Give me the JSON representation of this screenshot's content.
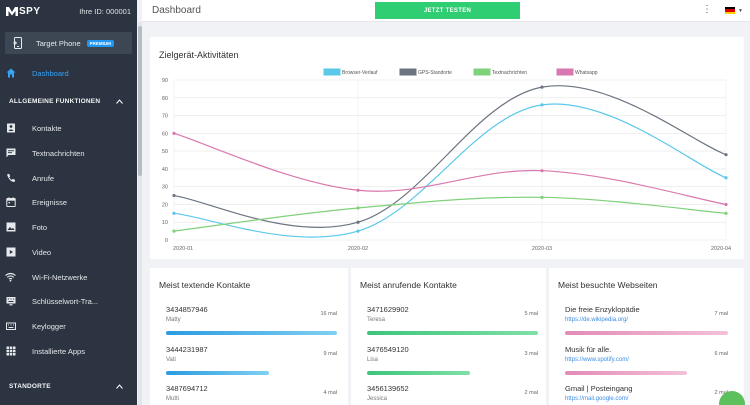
{
  "brand": {
    "logo": "SPY",
    "user_id": "Ihre ID: 000001"
  },
  "device": {
    "label": "Target Phone",
    "badge": "PREMIUM"
  },
  "nav": {
    "dashboard": "Dashboard",
    "section_general": "ALLGEMEINE FUNKTIONEN",
    "items": [
      "Kontakte",
      "Textnachrichten",
      "Anrufe",
      "Ereignisse",
      "Foto",
      "Video",
      "Wi-Fi-Netzwerke",
      "Schlüsselwort-Tra...",
      "Keylogger",
      "Installierte Apps"
    ],
    "section_locations": "STANDORTE"
  },
  "header": {
    "title": "Dashboard",
    "cta": "JETZT TESTEN"
  },
  "colors": {
    "browser": "#5bc8ea",
    "gps": "#6b7480",
    "sms": "#7fd17a",
    "whatsapp": "#d978ae",
    "accent": "#36a3f7",
    "green": "#2fce72"
  },
  "chart_data": {
    "type": "line",
    "title": "Zielgerät-Aktivitäten",
    "categories": [
      "2020-01",
      "2020-02",
      "2020-03",
      "2020-04"
    ],
    "ylim": [
      0,
      90
    ],
    "yticks": [
      0,
      10,
      20,
      30,
      40,
      50,
      60,
      70,
      80,
      90
    ],
    "legend_position": "top",
    "grid": true,
    "series": [
      {
        "name": "Browser-Verlauf",
        "values": [
          15,
          5,
          76,
          35
        ]
      },
      {
        "name": "GPS-Standorte",
        "values": [
          25,
          10,
          86,
          48
        ]
      },
      {
        "name": "Textnachrichten",
        "values": [
          5,
          18,
          24,
          15
        ]
      },
      {
        "name": "Whatsapp",
        "values": [
          60,
          28,
          39,
          20
        ]
      }
    ]
  },
  "texting": {
    "title": "Meist textende Kontakte",
    "items": [
      {
        "number": "3434857946",
        "name": "Matty",
        "count": "16 mal",
        "fill": 1.0
      },
      {
        "number": "3444231987",
        "name": "Vati",
        "count": "9 mal",
        "fill": 0.6
      },
      {
        "number": "3487694712",
        "name": "Mutti",
        "count": "4 mal",
        "fill": 0.3
      }
    ]
  },
  "calling": {
    "title": "Meist anrufende Kontakte",
    "items": [
      {
        "number": "3471629902",
        "name": "Teresa",
        "count": "5 mal",
        "fill": 1.0
      },
      {
        "number": "3476549120",
        "name": "Lisa",
        "count": "3 mal",
        "fill": 0.6
      },
      {
        "number": "3456139652",
        "name": "Jessica",
        "count": "2 mal",
        "fill": 0.4
      }
    ]
  },
  "websites": {
    "title": "Meist besuchte Webseiten",
    "items": [
      {
        "name": "Die freie Enzyklopädie",
        "url": "https://de.wikipedia.org/",
        "count": "7 mal",
        "fill": 1.0
      },
      {
        "name": "Musik für alle.",
        "url": "https://www.spotify.com/",
        "count": "6 mal",
        "fill": 0.75
      },
      {
        "name": "Gmail | Posteingang",
        "url": "https://mail.google.com/",
        "count": "2 mal",
        "fill": 0.3
      }
    ]
  }
}
